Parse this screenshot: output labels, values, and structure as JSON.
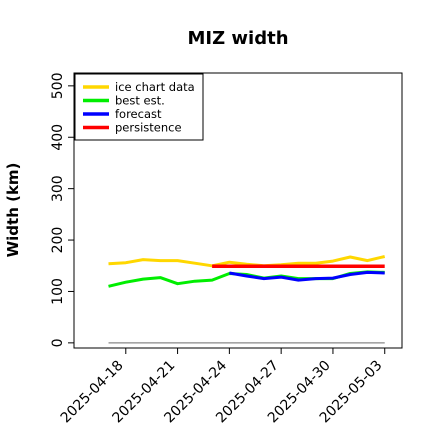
{
  "chart_data": {
    "type": "line",
    "title": "MIZ width",
    "xlabel": "",
    "ylabel": "Width (km)",
    "ylim": [
      -10,
      525
    ],
    "yticks": [
      0,
      100,
      200,
      300,
      400,
      500
    ],
    "xlim": [
      "2025-04-15",
      "2025-05-04"
    ],
    "xticks": [
      "2025-04-18",
      "2025-04-21",
      "2025-04-24",
      "2025-04-27",
      "2025-04-30",
      "2025-05-03"
    ],
    "highlight_tick": "2025-04-24",
    "highlight_color": "#228B22",
    "legend": {
      "position": "top-left",
      "entries": [
        "ice chart data",
        "best est.",
        "forecast",
        "persistence"
      ]
    },
    "series": [
      {
        "name": "ice chart data",
        "color": "#FFD700",
        "x": [
          "2025-04-17",
          "2025-04-18",
          "2025-04-19",
          "2025-04-20",
          "2025-04-21",
          "2025-04-22",
          "2025-04-23",
          "2025-04-24",
          "2025-04-25",
          "2025-04-26",
          "2025-04-27",
          "2025-04-28",
          "2025-04-29",
          "2025-04-30",
          "2025-05-01",
          "2025-05-02",
          "2025-05-03"
        ],
        "y": [
          154,
          156,
          162,
          160,
          160,
          155,
          150,
          157,
          153,
          150,
          152,
          155,
          155,
          159,
          167,
          160,
          168
        ]
      },
      {
        "name": "best est.",
        "color": "#00EE00",
        "x": [
          "2025-04-17",
          "2025-04-18",
          "2025-04-19",
          "2025-04-20",
          "2025-04-21",
          "2025-04-22",
          "2025-04-23",
          "2025-04-24",
          "2025-04-25",
          "2025-04-26",
          "2025-04-27",
          "2025-04-28",
          "2025-04-29",
          "2025-04-30",
          "2025-05-01",
          "2025-05-02",
          "2025-05-03"
        ],
        "y": [
          110,
          118,
          124,
          127,
          115,
          120,
          122,
          135,
          133,
          126,
          130,
          125,
          125,
          125,
          135,
          138,
          137
        ]
      },
      {
        "name": "forecast",
        "color": "#0000FF",
        "x": [
          "2025-04-24",
          "2025-04-25",
          "2025-04-26",
          "2025-04-27",
          "2025-04-28",
          "2025-04-29",
          "2025-04-30",
          "2025-05-01",
          "2025-05-02",
          "2025-05-03"
        ],
        "y": [
          136,
          130,
          125,
          128,
          122,
          125,
          126,
          133,
          137,
          136
        ]
      },
      {
        "name": "persistence",
        "color": "#FF0000",
        "x": [
          "2025-04-23",
          "2025-05-03"
        ],
        "y": [
          149,
          149
        ]
      }
    ],
    "reference_line": {
      "y": 0,
      "x": [
        "2025-04-17",
        "2025-05-03"
      ],
      "color": "#888888"
    }
  }
}
